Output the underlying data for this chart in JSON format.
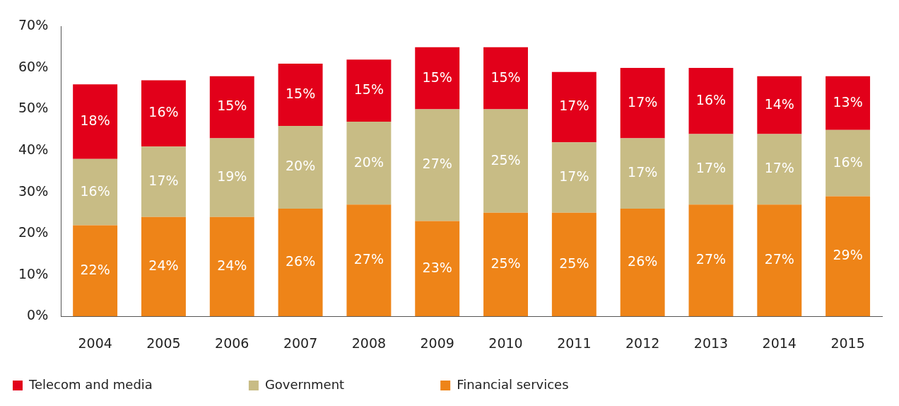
{
  "chart_data": {
    "type": "bar",
    "stacked": true,
    "categories": [
      "2004",
      "2005",
      "2006",
      "2007",
      "2008",
      "2009",
      "2010",
      "2011",
      "2012",
      "2013",
      "2014",
      "2015"
    ],
    "series": [
      {
        "name": "Financial services",
        "color": "#ee8418",
        "values": [
          22,
          24,
          24,
          26,
          27,
          23,
          25,
          25,
          26,
          27,
          27,
          29
        ],
        "value_labels": [
          "22%",
          "24%",
          "24%",
          "26%",
          "27%",
          "23%",
          "25%",
          "25%",
          "26%",
          "27%",
          "27%",
          "29%"
        ]
      },
      {
        "name": "Government",
        "color": "#c8bc85",
        "values": [
          16,
          17,
          19,
          20,
          20,
          27,
          25,
          17,
          17,
          17,
          17,
          16
        ],
        "value_labels": [
          "16%",
          "17%",
          "19%",
          "20%",
          "20%",
          "27%",
          "25%",
          "17%",
          "17%",
          "17%",
          "17%",
          "16%"
        ]
      },
      {
        "name": "Telecom and media",
        "color": "#e2001a",
        "values": [
          18,
          16,
          15,
          15,
          15,
          15,
          15,
          17,
          17,
          16,
          14,
          13
        ],
        "value_labels": [
          "18%",
          "16%",
          "15%",
          "15%",
          "15%",
          "15%",
          "15%",
          "17%",
          "17%",
          "16%",
          "14%",
          "13%"
        ]
      }
    ],
    "ylim": [
      0,
      70
    ],
    "yticks": [
      {
        "value": 0,
        "label": "0%"
      },
      {
        "value": 10,
        "label": "10%"
      },
      {
        "value": 20,
        "label": "20%"
      },
      {
        "value": 30,
        "label": "30%"
      },
      {
        "value": 40,
        "label": "40%"
      },
      {
        "value": 50,
        "label": "50%"
      },
      {
        "value": 60,
        "label": "60%"
      },
      {
        "value": 70,
        "label": "70%"
      }
    ],
    "grid": false,
    "legend": "bottom left"
  }
}
